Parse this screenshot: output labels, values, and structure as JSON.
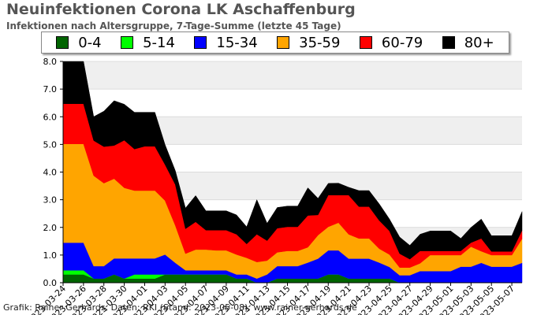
{
  "title": "Neuinfektionen Corona LK Aschaffenburg",
  "subtitle": "Infektionen nach Altersgruppe, 7-Tage-Summe (letzte 45 Tage)",
  "footer": "Grafik: Rainer Gerhards, Daten: RKI (Stand: 2023-05-08), www.rainer-gerhards.de",
  "legend": [
    {
      "label": "0-4",
      "color": "#006400"
    },
    {
      "label": "5-14",
      "color": "#00ff00"
    },
    {
      "label": "15-34",
      "color": "#0000ff"
    },
    {
      "label": "35-59",
      "color": "#ffa500"
    },
    {
      "label": "60-79",
      "color": "#ff0000"
    },
    {
      "label": "80+",
      "color": "#000000"
    }
  ],
  "chart_data": {
    "type": "area",
    "stacked": true,
    "ylim": [
      0,
      8
    ],
    "yticks": [
      "0.0",
      "1.0",
      "2.0",
      "3.0",
      "4.0",
      "5.0",
      "6.0",
      "7.0",
      "8.0"
    ],
    "x": [
      "2023-03-24",
      "2023-03-25",
      "2023-03-26",
      "2023-03-27",
      "2023-03-28",
      "2023-03-29",
      "2023-03-30",
      "2023-03-31",
      "2023-04-01",
      "2023-04-02",
      "2023-04-03",
      "2023-04-04",
      "2023-04-05",
      "2023-04-06",
      "2023-04-07",
      "2023-04-08",
      "2023-04-09",
      "2023-04-10",
      "2023-04-11",
      "2023-04-12",
      "2023-04-13",
      "2023-04-14",
      "2023-04-15",
      "2023-04-16",
      "2023-04-17",
      "2023-04-18",
      "2023-04-19",
      "2023-04-20",
      "2023-04-21",
      "2023-04-22",
      "2023-04-23",
      "2023-04-24",
      "2023-04-25",
      "2023-04-26",
      "2023-04-27",
      "2023-04-28",
      "2023-04-29",
      "2023-04-30",
      "2023-05-01",
      "2023-05-02",
      "2023-05-03",
      "2023-05-04",
      "2023-05-05",
      "2023-05-06",
      "2023-05-07",
      "2023-05-08"
    ],
    "xticks": [
      "2023-03-24",
      "2023-03-26",
      "2023-03-28",
      "2023-03-30",
      "2023-04-01",
      "2023-04-03",
      "2023-04-05",
      "2023-04-07",
      "2023-04-09",
      "2023-04-11",
      "2023-04-13",
      "2023-04-15",
      "2023-04-17",
      "2023-04-19",
      "2023-04-21",
      "2023-04-23",
      "2023-04-25",
      "2023-04-27",
      "2023-04-29",
      "2023-05-01",
      "2023-05-03",
      "2023-05-05",
      "2023-05-07"
    ],
    "series": [
      {
        "name": "0-4",
        "color": "#006400",
        "values": [
          0.3,
          0.3,
          0.3,
          0.15,
          0.15,
          0.3,
          0.15,
          0.15,
          0.15,
          0.15,
          0.3,
          0.3,
          0.3,
          0.3,
          0.3,
          0.3,
          0.3,
          0.15,
          0.15,
          0.0,
          0.0,
          0.15,
          0.15,
          0.15,
          0.15,
          0.15,
          0.3,
          0.3,
          0.15,
          0.15,
          0.15,
          0.15,
          0.15,
          0.0,
          0.0,
          0.0,
          0.0,
          0.0,
          0.0,
          0.0,
          0.0,
          0.0,
          0.0,
          0.0,
          0.0,
          0.0
        ]
      },
      {
        "name": "5-14",
        "color": "#00ff00",
        "values": [
          0.15,
          0.15,
          0.15,
          0.0,
          0.0,
          0.0,
          0.0,
          0.15,
          0.15,
          0.15,
          0.0,
          0.0,
          0.0,
          0.0,
          0.0,
          0.0,
          0.0,
          0.0,
          0.0,
          0.0,
          0.0,
          0.0,
          0.0,
          0.0,
          0.0,
          0.0,
          0.0,
          0.0,
          0.0,
          0.0,
          0.0,
          0.0,
          0.0,
          0.0,
          0.0,
          0.0,
          0.0,
          0.0,
          0.0,
          0.0,
          0.0,
          0.0,
          0.0,
          0.0,
          0.0,
          0.0
        ]
      },
      {
        "name": "15-34",
        "color": "#0000ff",
        "values": [
          1.0,
          1.0,
          1.0,
          0.45,
          0.45,
          0.58,
          0.73,
          0.58,
          0.58,
          0.58,
          0.72,
          0.42,
          0.15,
          0.15,
          0.15,
          0.15,
          0.15,
          0.15,
          0.15,
          0.15,
          0.3,
          0.45,
          0.45,
          0.45,
          0.58,
          0.72,
          0.87,
          0.87,
          0.72,
          0.72,
          0.72,
          0.58,
          0.42,
          0.27,
          0.27,
          0.42,
          0.42,
          0.42,
          0.42,
          0.58,
          0.58,
          0.72,
          0.58,
          0.58,
          0.58,
          0.72
        ]
      },
      {
        "name": "35-59",
        "color": "#ffa500",
        "values": [
          3.57,
          3.57,
          3.57,
          3.27,
          3.0,
          2.88,
          2.55,
          2.45,
          2.45,
          2.45,
          1.95,
          1.35,
          0.6,
          0.75,
          0.75,
          0.72,
          0.72,
          0.72,
          0.6,
          0.6,
          0.5,
          0.5,
          0.55,
          0.55,
          0.55,
          0.85,
          0.85,
          1.0,
          0.88,
          0.73,
          0.73,
          0.5,
          0.45,
          0.28,
          0.28,
          0.28,
          0.58,
          0.58,
          0.58,
          0.42,
          0.72,
          0.42,
          0.42,
          0.42,
          0.42,
          0.87
        ]
      },
      {
        "name": "60-79",
        "color": "#ff0000",
        "values": [
          1.45,
          1.45,
          1.45,
          1.27,
          1.32,
          1.2,
          1.72,
          1.5,
          1.6,
          1.6,
          1.3,
          1.48,
          0.9,
          1.0,
          0.7,
          0.73,
          0.73,
          0.73,
          0.5,
          1.0,
          0.72,
          0.87,
          0.87,
          0.87,
          1.15,
          0.73,
          1.15,
          1.0,
          1.42,
          1.15,
          1.15,
          1.02,
          0.85,
          0.5,
          0.3,
          0.45,
          0.15,
          0.15,
          0.15,
          0.15,
          0.15,
          0.46,
          0.13,
          0.13,
          0.13,
          0.3
        ]
      },
      {
        "name": "80+",
        "color": "#000000",
        "values": [
          1.53,
          1.53,
          1.53,
          0.86,
          1.28,
          1.62,
          1.3,
          1.33,
          1.23,
          1.23,
          0.72,
          0.5,
          0.75,
          0.95,
          0.7,
          0.7,
          0.7,
          0.7,
          0.62,
          1.25,
          0.63,
          0.75,
          0.75,
          0.75,
          1.0,
          0.6,
          0.42,
          0.43,
          0.28,
          0.58,
          0.58,
          0.6,
          0.43,
          0.6,
          0.5,
          0.6,
          0.72,
          0.72,
          0.72,
          0.45,
          0.55,
          0.7,
          0.57,
          0.57,
          0.57,
          0.68
        ]
      }
    ]
  }
}
